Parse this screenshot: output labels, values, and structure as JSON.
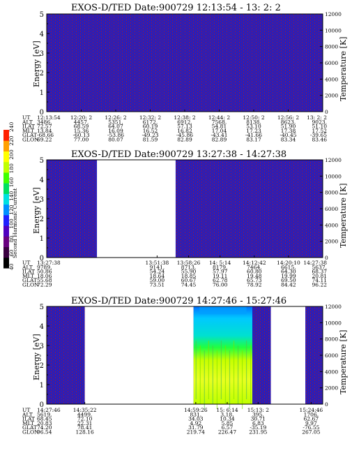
{
  "colors": {
    "background_fill": "#2a1eb8",
    "noise": "#8a1a50",
    "empty": "#ffffff"
  },
  "colorbar": {
    "label": "Second Harmonic Current",
    "ticks": [
      "40",
      "60",
      "80",
      "100",
      "120",
      "140",
      "160",
      "180",
      "200",
      "220",
      "240"
    ],
    "colors": [
      "#000000",
      "#3a0040",
      "#6a0080",
      "#5000c0",
      "#2020ff",
      "#0090ff",
      "#00e0e0",
      "#00e060",
      "#40ff00",
      "#c0ff00",
      "#ffff00",
      "#ffa000",
      "#ff2000"
    ]
  },
  "chart_data": [
    {
      "type": "heatmap",
      "title": "EXOS-D/TED   Date:900729  12:13:54 - 13: 2: 2",
      "ylabel": "Energy [eV]",
      "y2label": "Temperature [K]",
      "ylim": [
        0,
        5
      ],
      "y2lim": [
        0,
        12000
      ],
      "yticks": [
        "0",
        "1",
        "2",
        "3",
        "4",
        "5"
      ],
      "y2ticks": [
        "0",
        "2000",
        "4000",
        "6000",
        "8000",
        "10000",
        "12000"
      ],
      "x_frac_coverage": [
        [
          0.0,
          1.0
        ]
      ],
      "bright_columns": [],
      "rows": [
        {
          "name": "UT",
          "values": [
            "12:13:54",
            "12:20: 2",
            "12:26: 2",
            "12:32: 2",
            "12:38: 2",
            "12:44: 2",
            "12:50: 2",
            "12:56: 2",
            "13: 2: 2"
          ]
        },
        {
          "name": "ALT",
          "values": [
            "3486.",
            "4457.",
            "5351.",
            "6172.",
            "6912.",
            "7568.",
            "8138.",
            "8623.",
            "9023."
          ]
        },
        {
          "name": "ILAT",
          "values": [
            "72.57",
            "68.59",
            "64.07",
            "60.19",
            "57.13",
            "54.81",
            "53.10",
            "51.90",
            "51.10"
          ]
        },
        {
          "name": "MLT",
          "values": [
            "13.84",
            "15.36",
            "16.09",
            "16.52",
            "16.82",
            "17.04",
            "17.23",
            "17.38",
            "17.52"
          ]
        },
        {
          "name": "GLAT",
          "values": [
            "-68.66",
            "-60.13",
            "-53.86",
            "-49.23",
            "-45.86",
            "-43.41",
            "-41.66",
            "-40.45",
            "-39.65"
          ]
        },
        {
          "name": "GLON",
          "values": [
            "69.22",
            "77.00",
            "80.07",
            "81.59",
            "82.89",
            "82.89",
            "83.17",
            "83.34",
            "83.46"
          ]
        }
      ],
      "row_value_positions": [
        0.0,
        0.125,
        0.25,
        0.375,
        0.5,
        0.625,
        0.75,
        0.875,
        1.0
      ]
    },
    {
      "type": "heatmap",
      "title": "EXOS-D/TED   Date:900729  13:27:38 - 14:27:38",
      "ylabel": "Energy [eV]",
      "y2label": "Temperature [K]",
      "ylim": [
        0,
        5
      ],
      "y2lim": [
        0,
        12000
      ],
      "yticks": [
        "0",
        "1",
        "2",
        "3",
        "4",
        "5"
      ],
      "y2ticks": [
        "0",
        "2000",
        "4000",
        "6000",
        "8000",
        "10000",
        "12000"
      ],
      "x_frac_coverage": [
        [
          0.0,
          0.182
        ],
        [
          0.467,
          1.0
        ]
      ],
      "bright_columns": [],
      "rows": [
        {
          "name": "UT",
          "values": [
            "13:27:38",
            "13:51:38",
            "13:58:26",
            "14: 5:14",
            "14:12:42",
            "14:20:10",
            "14:27:38"
          ]
        },
        {
          "name": "ALT",
          "values": [
            "9789.",
            "9141.",
            "8713.",
            "8179.",
            "7464.",
            "6615.",
            "5637."
          ]
        },
        {
          "name": "ILAT",
          "values": [
            "50.86",
            "54.24",
            "55.90",
            "57.97",
            "60.80",
            "64.30",
            "68.37"
          ]
        },
        {
          "name": "MLT",
          "values": [
            "18.06",
            "18.64",
            "18.85",
            "19.11",
            "19.48",
            "19.99",
            "20.81"
          ]
        },
        {
          "name": "GLAT",
          "values": [
            "55.68",
            "59.00",
            "60.67",
            "62.78",
            "65.73",
            "69.50",
            "74.11"
          ]
        },
        {
          "name": "GLON",
          "values": [
            "72.29",
            "73.51",
            "74.45",
            "76.00",
            "78.92",
            "84.42",
            "96.22"
          ]
        }
      ],
      "row_value_positions": [
        0.0,
        0.4,
        0.514,
        0.628,
        0.752,
        0.876,
        1.0
      ]
    },
    {
      "type": "heatmap",
      "title": "EXOS-D/TED   Date:900729  14:27:46 - 15:27:46",
      "ylabel": "Energy [eV]",
      "y2label": "Temperature [K]",
      "ylim": [
        0,
        5
      ],
      "y2lim": [
        0,
        12000
      ],
      "yticks": [
        "0",
        "1",
        "2",
        "3",
        "4",
        "5"
      ],
      "y2ticks": [
        "0",
        "2000",
        "4000",
        "6000",
        "8000",
        "10000",
        "12000"
      ],
      "x_frac_coverage": [
        [
          0.0,
          0.138
        ],
        [
          0.532,
          0.812
        ],
        [
          0.937,
          1.0
        ]
      ],
      "bright_columns": [
        [
          0.532,
          0.745
        ]
      ],
      "rows": [
        {
          "name": "UT",
          "values": [
            "14:27:46",
            "14:35:22",
            "14:59:26",
            "15: 6:14",
            "15:13: 2",
            "15:24:46"
          ]
        },
        {
          "name": "ALT",
          "values": [
            "5619.",
            "4499.",
            "831.",
            "3.18.",
            "395.",
            "1706."
          ]
        },
        {
          "name": "ILAT",
          "values": [
            "68.45",
            "72.10",
            "34.03",
            "10.34",
            "30.71",
            "62.67"
          ]
        },
        {
          "name": "MLT",
          "values": [
            "20.83",
            "22.31",
            "4.92",
            "5.85",
            "6.83",
            "9.97"
          ]
        },
        {
          "name": "GLAT",
          "values": [
            "74.20",
            "78.41",
            "31.79",
            "6.57",
            "-35.19",
            "-76.55"
          ]
        },
        {
          "name": "GLON",
          "values": [
            "96.54",
            "128.16",
            "219.74",
            "226.47",
            "231.95",
            "267.05"
          ]
        }
      ],
      "row_value_positions": [
        0.0,
        0.138,
        0.54,
        0.654,
        0.766,
        0.958
      ]
    }
  ]
}
